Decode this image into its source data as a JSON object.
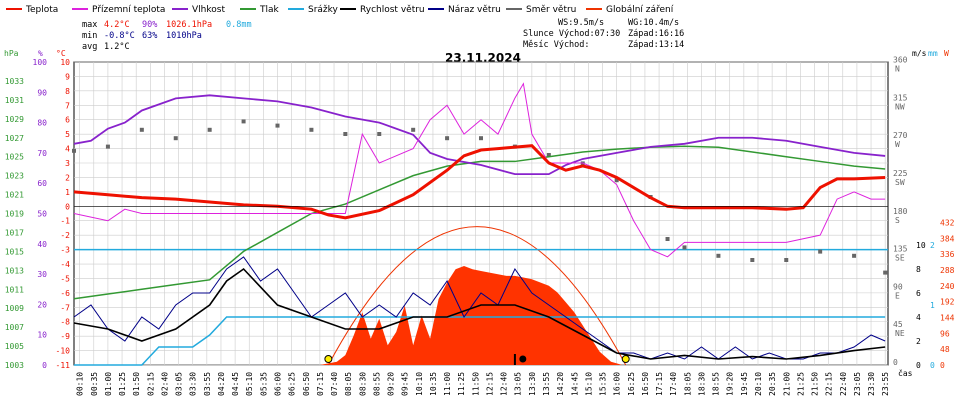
{
  "legend": [
    {
      "label": "Teplota",
      "color": "#ee1100"
    },
    {
      "label": "Přízemní teplota",
      "color": "#dd22dd"
    },
    {
      "label": "Vlhkost",
      "color": "#8822cc"
    },
    {
      "label": "Tlak",
      "color": "#339933"
    },
    {
      "label": "Srážky",
      "color": "#22aadd"
    },
    {
      "label": "Rychlost větru",
      "color": "#000000"
    },
    {
      "label": "Náraz větru",
      "color": "#000088"
    },
    {
      "label": "Směr větru",
      "color": "#666666"
    },
    {
      "label": "Globální záření",
      "color": "#ee3300"
    }
  ],
  "stats": {
    "max_label": "max",
    "max_temp": "4.2°C",
    "max_hum": "90%",
    "max_press": "1026.1hPa",
    "max_rain": "0.8mm",
    "min_label": "min",
    "min_temp": "-0.8°C",
    "min_hum": "63%",
    "min_press": "1010hPa",
    "avg_label": "avg",
    "avg_temp": "1.2°C"
  },
  "wind_info": {
    "ws": "WS:9.5m/s",
    "wg": "WG:10.4m/s"
  },
  "sun_info": {
    "sunrise": "Slunce Východ:07:30",
    "sunset": "Západ:16:16"
  },
  "moon_info": {
    "rise": "Měsíc  Východ:",
    "set": "Západ:13:14"
  },
  "date": "23.11.2024",
  "axis_units": {
    "hpa": "hPa",
    "pct": "%",
    "degc": "°C",
    "ms": "m/s",
    "mm": "mm",
    "w": "W",
    "time": "čas"
  },
  "chart_data": {
    "type": "line",
    "title": "23.11.2024",
    "x_ticks": [
      "00:10",
      "00:35",
      "01:00",
      "01:25",
      "01:50",
      "02:15",
      "02:40",
      "03:05",
      "03:30",
      "03:55",
      "04:20",
      "04:45",
      "05:10",
      "05:35",
      "06:00",
      "06:25",
      "06:50",
      "07:15",
      "07:40",
      "08:05",
      "08:30",
      "08:55",
      "09:20",
      "09:45",
      "10:10",
      "10:35",
      "11:00",
      "11:25",
      "11:50",
      "12:15",
      "12:40",
      "13:05",
      "13:30",
      "13:55",
      "14:20",
      "14:45",
      "15:10",
      "15:35",
      "16:00",
      "16:25",
      "16:50",
      "17:15",
      "17:40",
      "18:05",
      "18:30",
      "18:55",
      "19:20",
      "19:45",
      "20:10",
      "20:35",
      "21:00",
      "21:25",
      "21:50",
      "22:15",
      "22:40",
      "23:05",
      "23:30",
      "23:55"
    ],
    "axes": {
      "pressure_hpa": {
        "range": [
          1003,
          1035
        ],
        "ticks": [
          "1033",
          "1031",
          "1029",
          "1027",
          "1025",
          "1023",
          "1021",
          "1019",
          "1017",
          "1015",
          "1013",
          "1011",
          "1009",
          "1007",
          "1005",
          "1003"
        ]
      },
      "humidity_pct": {
        "range": [
          0,
          100
        ],
        "ticks": [
          "100",
          "90",
          "80",
          "70",
          "60",
          "50",
          "40",
          "30",
          "20",
          "10",
          "0"
        ]
      },
      "temperature_c": {
        "range": [
          -11,
          10
        ],
        "ticks": [
          "10",
          "9",
          "8",
          "7",
          "6",
          "5",
          "4",
          "3",
          "2",
          "1",
          "0",
          "-1",
          "-2",
          "-3",
          "-4",
          "-5",
          "-6",
          "-7",
          "-8",
          "-9",
          "-10",
          "-11"
        ]
      },
      "wind_dir": {
        "ticks": [
          "360 N",
          "315 NW",
          "270 W",
          "225 SW",
          "180 S",
          "135 SE",
          "90 E",
          "45 NE",
          "0"
        ]
      },
      "wind_ms": {
        "ticks": [
          "10",
          "8",
          "6",
          "4",
          "2",
          "0"
        ]
      },
      "rain_mm": {
        "ticks": [
          "2",
          "1",
          "0"
        ]
      },
      "radiation_w": {
        "ticks": [
          "432",
          "384",
          "336",
          "288",
          "240",
          "192",
          "144",
          "96",
          "48",
          "0"
        ]
      }
    },
    "series": [
      {
        "name": "Teplota",
        "unit": "°C",
        "color": "#ee1100",
        "x": [
          "00:00",
          "01:00",
          "02:00",
          "03:00",
          "04:00",
          "05:00",
          "06:00",
          "07:00",
          "07:30",
          "08:00",
          "09:00",
          "10:00",
          "11:00",
          "11:30",
          "12:00",
          "12:30",
          "13:00",
          "13:30",
          "14:00",
          "14:30",
          "15:00",
          "15:30",
          "16:00",
          "16:30",
          "17:00",
          "17:30",
          "18:00",
          "19:00",
          "20:00",
          "21:00",
          "21:30",
          "22:00",
          "22:30",
          "23:00",
          "23:55"
        ],
        "y": [
          1,
          0.8,
          0.6,
          0.5,
          0.3,
          0.1,
          0,
          -0.2,
          -0.6,
          -0.8,
          -0.3,
          0.8,
          2.5,
          3.5,
          3.9,
          4,
          4.1,
          4.2,
          3,
          2.5,
          2.8,
          2.5,
          2,
          1.3,
          0.6,
          0,
          -0.1,
          -0.1,
          -0.1,
          -0.2,
          -0.1,
          1.3,
          1.9,
          1.9,
          2
        ]
      },
      {
        "name": "Přízemní teplota",
        "unit": "°C",
        "color": "#dd22dd",
        "x": [
          "00:00",
          "01:00",
          "01:30",
          "02:00",
          "03:00",
          "04:00",
          "05:00",
          "06:00",
          "07:00",
          "07:30",
          "08:00",
          "08:30",
          "09:00",
          "10:00",
          "10:30",
          "11:00",
          "11:30",
          "12:00",
          "12:30",
          "13:00",
          "13:15",
          "13:30",
          "14:00",
          "15:00",
          "15:30",
          "16:00",
          "16:30",
          "17:00",
          "17:30",
          "18:00",
          "19:00",
          "20:00",
          "21:00",
          "22:00",
          "22:30",
          "23:00",
          "23:30",
          "23:55"
        ],
        "y": [
          -0.5,
          -1,
          -0.2,
          -0.5,
          -0.5,
          -0.5,
          -0.5,
          -0.5,
          -0.5,
          -0.5,
          -0.5,
          5,
          3,
          4,
          6,
          7,
          5,
          6,
          5,
          7.5,
          8.5,
          5,
          3,
          3,
          2.5,
          1.5,
          -1,
          -3,
          -3.5,
          -2.5,
          -2.5,
          -2.5,
          -2.5,
          -2,
          0.5,
          1,
          0.5,
          0.5
        ]
      },
      {
        "name": "Vlhkost",
        "unit": "%",
        "color": "#8822cc",
        "x": [
          "00:00",
          "00:30",
          "01:00",
          "01:30",
          "02:00",
          "03:00",
          "04:00",
          "05:00",
          "06:00",
          "07:00",
          "08:00",
          "09:00",
          "10:00",
          "10:30",
          "11:00",
          "12:00",
          "13:00",
          "14:00",
          "14:30",
          "15:00",
          "16:00",
          "17:00",
          "18:00",
          "19:00",
          "20:00",
          "21:00",
          "22:00",
          "23:00",
          "23:55"
        ],
        "y": [
          73,
          74,
          78,
          80,
          84,
          88,
          89,
          88,
          87,
          85,
          82,
          80,
          76,
          70,
          68,
          66,
          63,
          63,
          66,
          68,
          70,
          72,
          73,
          75,
          75,
          74,
          72,
          70,
          69
        ]
      },
      {
        "name": "Tlak",
        "unit": "hPa",
        "color": "#339933",
        "x": [
          "00:00",
          "01:00",
          "02:00",
          "03:00",
          "04:00",
          "05:00",
          "06:00",
          "07:00",
          "08:00",
          "09:00",
          "10:00",
          "11:00",
          "12:00",
          "13:00",
          "14:00",
          "15:00",
          "16:00",
          "17:00",
          "18:00",
          "19:00",
          "20:00",
          "21:00",
          "22:00",
          "23:00",
          "23:55"
        ],
        "y": [
          1010,
          1010.5,
          1011,
          1011.5,
          1012,
          1015,
          1017,
          1019,
          1020,
          1021.5,
          1023,
          1024,
          1024.5,
          1024.5,
          1025,
          1025.5,
          1025.8,
          1026,
          1026.1,
          1026,
          1025.5,
          1025,
          1024.5,
          1024,
          1023.7
        ]
      },
      {
        "name": "Srážky",
        "unit": "mm",
        "color": "#22aadd",
        "x": [
          "00:00",
          "02:00",
          "02:30",
          "03:30",
          "04:00",
          "04:30",
          "05:00",
          "23:55"
        ],
        "y": [
          0,
          0,
          0.3,
          0.3,
          0.5,
          0.8,
          0.8,
          0.8
        ]
      },
      {
        "name": "Rychlost větru",
        "unit": "m/s",
        "color": "#000000",
        "x": [
          "00:00",
          "01:00",
          "02:00",
          "03:00",
          "04:00",
          "04:30",
          "05:00",
          "06:00",
          "07:00",
          "08:00",
          "09:00",
          "10:00",
          "11:00",
          "12:00",
          "13:00",
          "13:30",
          "14:00",
          "15:00",
          "16:00",
          "17:00",
          "18:00",
          "19:00",
          "20:00",
          "21:00",
          "22:00",
          "23:00",
          "23:55"
        ],
        "y": [
          3.5,
          3,
          2,
          3,
          5,
          7,
          8,
          5,
          4,
          3,
          3,
          4,
          4,
          5,
          5,
          4.5,
          4,
          2.5,
          1,
          0.5,
          0.8,
          0.5,
          0.7,
          0.5,
          0.8,
          1.2,
          1.5
        ]
      },
      {
        "name": "Náraz větru",
        "unit": "m/s",
        "color": "#000088",
        "x": [
          "00:00",
          "00:30",
          "01:00",
          "01:30",
          "02:00",
          "02:30",
          "03:00",
          "03:30",
          "04:00",
          "04:30",
          "05:00",
          "05:30",
          "06:00",
          "06:30",
          "07:00",
          "07:30",
          "08:00",
          "08:30",
          "09:00",
          "09:30",
          "10:00",
          "10:30",
          "11:00",
          "11:30",
          "12:00",
          "12:30",
          "13:00",
          "13:30",
          "14:00",
          "14:30",
          "15:00",
          "15:30",
          "16:00",
          "16:30",
          "17:00",
          "17:30",
          "18:00",
          "18:30",
          "19:00",
          "19:30",
          "20:00",
          "20:30",
          "21:00",
          "21:30",
          "22:00",
          "22:30",
          "23:00",
          "23:30",
          "23:55"
        ],
        "y": [
          4,
          5,
          3,
          2,
          4,
          3,
          5,
          6,
          6,
          8,
          9,
          7,
          8,
          6,
          4,
          5,
          6,
          4,
          5,
          4,
          6,
          5,
          7,
          4,
          6,
          5,
          8,
          6,
          5,
          4,
          3,
          2,
          1,
          1,
          0.5,
          1,
          0.5,
          1.5,
          0.5,
          1.5,
          0.5,
          1,
          0.5,
          0.5,
          1,
          1,
          1.5,
          2.5,
          2
        ]
      },
      {
        "name": "Směr větru",
        "unit": "°",
        "color": "#666666",
        "x": [
          "00:00",
          "01:00",
          "02:00",
          "03:00",
          "04:00",
          "05:00",
          "06:00",
          "07:00",
          "08:00",
          "09:00",
          "10:00",
          "11:00",
          "12:00",
          "13:00",
          "14:00",
          "15:00",
          "16:00",
          "17:00",
          "17:30",
          "18:00",
          "19:00",
          "20:00",
          "21:00",
          "22:00",
          "23:00",
          "23:55"
        ],
        "y": [
          255,
          260,
          280,
          270,
          280,
          290,
          285,
          280,
          275,
          275,
          280,
          270,
          270,
          260,
          250,
          240,
          220,
          200,
          150,
          140,
          130,
          125,
          125,
          135,
          130,
          110
        ]
      },
      {
        "name": "Globální záření",
        "unit": "W",
        "color": "#ee3300",
        "x": [
          "07:15",
          "07:45",
          "08:00",
          "08:15",
          "08:30",
          "08:45",
          "09:00",
          "09:15",
          "09:30",
          "09:45",
          "10:00",
          "10:15",
          "10:30",
          "10:45",
          "11:00",
          "11:15",
          "11:30",
          "11:45",
          "12:00",
          "12:15",
          "12:30",
          "12:45",
          "13:00",
          "13:15",
          "13:30",
          "13:45",
          "14:00",
          "14:15",
          "14:30",
          "14:45",
          "15:00",
          "15:15",
          "15:30",
          "15:50",
          "16:10"
        ],
        "y": [
          0,
          10,
          30,
          90,
          160,
          80,
          140,
          60,
          100,
          180,
          60,
          150,
          80,
          200,
          250,
          290,
          300,
          290,
          285,
          280,
          275,
          270,
          270,
          265,
          260,
          250,
          240,
          220,
          190,
          160,
          120,
          80,
          40,
          10,
          0
        ]
      }
    ]
  }
}
